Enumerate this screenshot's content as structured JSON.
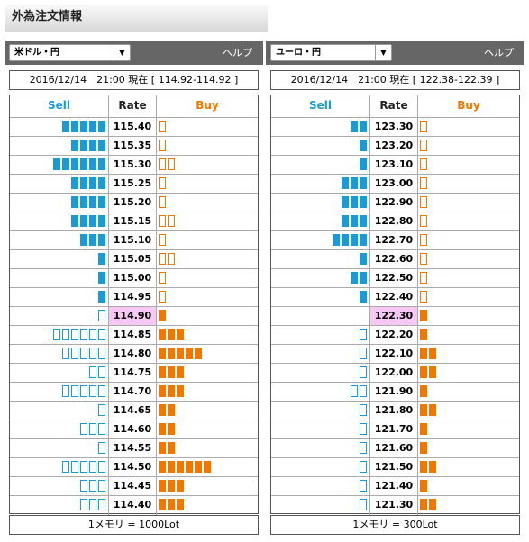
{
  "title": "外為注文情報",
  "panels": [
    {
      "pair": "米ドル・円",
      "help": "ヘルプ",
      "timestamp": "2016/12/14　21:00 現在 [ 114.92-114.92 ]",
      "columns": {
        "sell": "Sell",
        "rate": "Rate",
        "buy": "Buy"
      },
      "current": 10,
      "rows": [
        {
          "rate": "115.40",
          "sell": 5,
          "buy": 1
        },
        {
          "rate": "115.35",
          "sell": 4,
          "buy": 1
        },
        {
          "rate": "115.30",
          "sell": 6,
          "buy": 2
        },
        {
          "rate": "115.25",
          "sell": 4,
          "buy": 1
        },
        {
          "rate": "115.20",
          "sell": 4,
          "buy": 1
        },
        {
          "rate": "115.15",
          "sell": 4,
          "buy": 2
        },
        {
          "rate": "115.10",
          "sell": 3,
          "buy": 1
        },
        {
          "rate": "115.05",
          "sell": 1,
          "buy": 2
        },
        {
          "rate": "115.00",
          "sell": 1,
          "buy": 1
        },
        {
          "rate": "114.95",
          "sell": 1,
          "buy": 1
        },
        {
          "rate": "114.90",
          "sell": 1,
          "buy": 1
        },
        {
          "rate": "114.85",
          "sell": 6,
          "buy": 3
        },
        {
          "rate": "114.80",
          "sell": 5,
          "buy": 5
        },
        {
          "rate": "114.75",
          "sell": 2,
          "buy": 3
        },
        {
          "rate": "114.70",
          "sell": 5,
          "buy": 3
        },
        {
          "rate": "114.65",
          "sell": 1,
          "buy": 2
        },
        {
          "rate": "114.60",
          "sell": 3,
          "buy": 2
        },
        {
          "rate": "114.55",
          "sell": 1,
          "buy": 2
        },
        {
          "rate": "114.50",
          "sell": 5,
          "buy": 6
        },
        {
          "rate": "114.45",
          "sell": 3,
          "buy": 3
        },
        {
          "rate": "114.40",
          "sell": 3,
          "buy": 3
        }
      ],
      "footer": "1メモリ = 1000Lot"
    },
    {
      "pair": "ユーロ・円",
      "help": "ヘルプ",
      "timestamp": "2016/12/14　21:00 現在 [ 122.38-122.39 ]",
      "columns": {
        "sell": "Sell",
        "rate": "Rate",
        "buy": "Buy"
      },
      "current": 10,
      "rows": [
        {
          "rate": "123.30",
          "sell": 2,
          "buy": 1
        },
        {
          "rate": "123.20",
          "sell": 1,
          "buy": 1
        },
        {
          "rate": "123.10",
          "sell": 1,
          "buy": 1
        },
        {
          "rate": "123.00",
          "sell": 3,
          "buy": 1
        },
        {
          "rate": "122.90",
          "sell": 3,
          "buy": 1
        },
        {
          "rate": "122.80",
          "sell": 3,
          "buy": 1
        },
        {
          "rate": "122.70",
          "sell": 4,
          "buy": 1
        },
        {
          "rate": "122.60",
          "sell": 1,
          "buy": 1
        },
        {
          "rate": "122.50",
          "sell": 2,
          "buy": 1
        },
        {
          "rate": "122.40",
          "sell": 1,
          "buy": 1
        },
        {
          "rate": "122.30",
          "sell": 0,
          "buy": 1
        },
        {
          "rate": "122.20",
          "sell": 1,
          "buy": 1
        },
        {
          "rate": "122.10",
          "sell": 1,
          "buy": 2
        },
        {
          "rate": "122.00",
          "sell": 1,
          "buy": 2
        },
        {
          "rate": "121.90",
          "sell": 2,
          "buy": 1
        },
        {
          "rate": "121.80",
          "sell": 1,
          "buy": 2
        },
        {
          "rate": "121.70",
          "sell": 1,
          "buy": 1
        },
        {
          "rate": "121.60",
          "sell": 1,
          "buy": 1
        },
        {
          "rate": "121.50",
          "sell": 1,
          "buy": 2
        },
        {
          "rate": "121.40",
          "sell": 1,
          "buy": 1
        },
        {
          "rate": "121.30",
          "sell": 1,
          "buy": 2
        }
      ],
      "footer": "1メモリ = 300Lot"
    }
  ]
}
